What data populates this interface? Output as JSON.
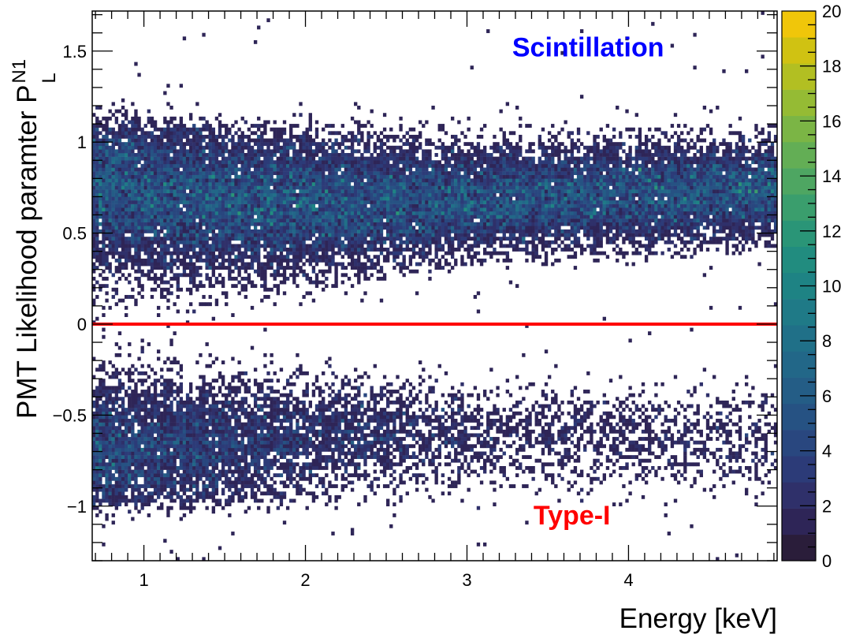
{
  "chart_data": {
    "type": "heatmap",
    "title": "",
    "xlabel": "Energy [keV]",
    "ylabel": "PMT Likelihood paramter P",
    "ylabel_sup": "N1",
    "ylabel_sub": "L",
    "xlim": [
      0.68,
      4.92
    ],
    "ylim": [
      -1.3,
      1.72
    ],
    "x_ticks": [
      1,
      2,
      3,
      4
    ],
    "y_ticks": [
      -1,
      -0.5,
      0,
      0.5,
      1,
      1.5
    ],
    "y_tick_labels": [
      "−1",
      "−0.5",
      "0",
      "0.5",
      "1",
      "1.5"
    ],
    "colorbar": {
      "min": 0,
      "max": 20,
      "ticks": [
        0,
        2,
        4,
        6,
        8,
        10,
        12,
        14,
        16,
        18,
        20
      ],
      "palette": "viridis"
    },
    "bins": {
      "nx": 212,
      "ny": 151
    },
    "bands": [
      {
        "name": "Scintillation",
        "center": [
          [
            0.68,
            0.76
          ],
          [
            1.5,
            0.68
          ],
          [
            2.5,
            0.66
          ],
          [
            3.5,
            0.7
          ],
          [
            4.92,
            0.74
          ]
        ],
        "sigma": [
          [
            0.68,
            0.25
          ],
          [
            2.0,
            0.2
          ],
          [
            3.0,
            0.15
          ],
          [
            4.92,
            0.14
          ]
        ],
        "peak_density": 5.0,
        "lower_edge": [
          [
            0.68,
            -0.15
          ],
          [
            1.5,
            0.1
          ],
          [
            2.5,
            0.28
          ],
          [
            3.5,
            0.38
          ],
          [
            4.92,
            0.42
          ]
        ],
        "upper_edge": 1.08
      },
      {
        "name": "Type-I",
        "center": [
          [
            0.68,
            -0.72
          ],
          [
            1.5,
            -0.66
          ],
          [
            2.5,
            -0.6
          ],
          [
            3.5,
            -0.62
          ],
          [
            4.92,
            -0.64
          ]
        ],
        "sigma": [
          [
            0.68,
            0.22
          ],
          [
            2.0,
            0.17
          ],
          [
            3.0,
            0.15
          ],
          [
            4.92,
            0.15
          ]
        ],
        "peak_density": [
          [
            0.68,
            4.0
          ],
          [
            2.0,
            2.0
          ],
          [
            3.0,
            0.9
          ],
          [
            4.92,
            0.6
          ]
        ],
        "upper_edge": [
          [
            0.68,
            0.0
          ],
          [
            1.5,
            -0.2
          ],
          [
            2.5,
            -0.3
          ],
          [
            4.92,
            -0.35
          ]
        ],
        "lower_edge": -0.97
      }
    ],
    "cut_line": {
      "y": 0,
      "color": "#ff0000"
    },
    "annotations": [
      {
        "text": "Scintillation",
        "x": 3.75,
        "y": 1.47,
        "color": "#0000ff"
      },
      {
        "text": "Type-I",
        "x": 3.65,
        "y": -1.1,
        "color": "#ff0000"
      }
    ]
  }
}
